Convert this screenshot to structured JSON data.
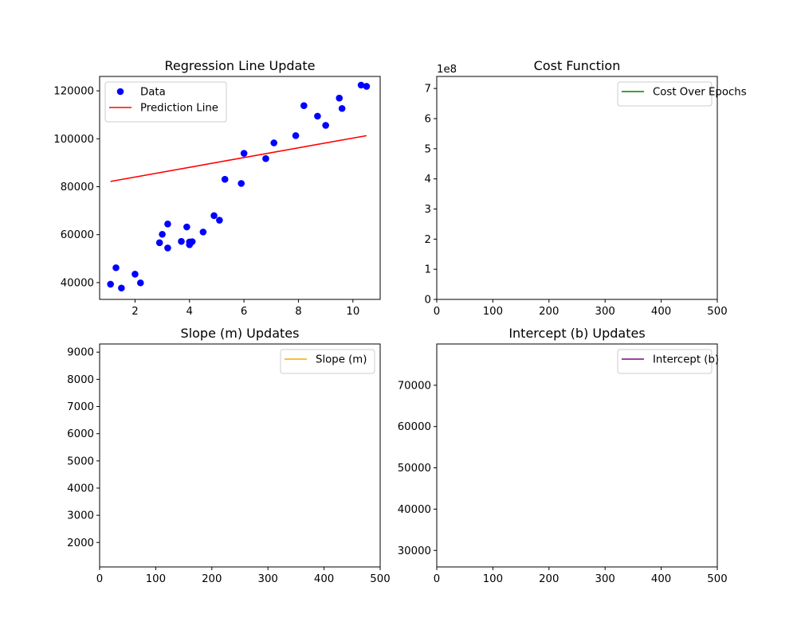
{
  "chart_data": [
    {
      "type": "scatter",
      "title": "Regression Line Update",
      "xlabel": "",
      "ylabel": "",
      "xlim": [
        0.7,
        11.0
      ],
      "ylim": [
        33000,
        126000
      ],
      "xticks": [
        2,
        4,
        6,
        8,
        10
      ],
      "yticks": [
        40000,
        60000,
        80000,
        100000,
        120000
      ],
      "legend_position": "top-left",
      "series": [
        {
          "name": "Data",
          "kind": "scatter",
          "color": "#0000ff",
          "x": [
            1.1,
            1.3,
            1.5,
            2.0,
            2.2,
            2.9,
            3.0,
            3.2,
            3.2,
            3.7,
            3.9,
            4.0,
            4.0,
            4.1,
            4.5,
            4.9,
            5.1,
            5.3,
            5.9,
            6.0,
            6.8,
            7.1,
            7.9,
            8.2,
            8.7,
            9.0,
            9.5,
            9.6,
            10.3,
            10.5
          ],
          "y": [
            39343,
            46205,
            37731,
            43525,
            39891,
            56642,
            60150,
            54445,
            64445,
            57189,
            63218,
            55794,
            56957,
            57081,
            61111,
            67938,
            66029,
            83088,
            81363,
            93940,
            91738,
            98273,
            101302,
            113812,
            109431,
            105582,
            116969,
            112635,
            122391,
            121872
          ]
        },
        {
          "name": "Prediction Line",
          "kind": "line",
          "color": "#ff0000",
          "x": [
            1.1,
            10.5
          ],
          "y": [
            82200,
            101300
          ]
        }
      ]
    },
    {
      "type": "line",
      "title": "Cost Function",
      "xlabel": "",
      "ylabel": "",
      "xlim": [
        0,
        500
      ],
      "ylim": [
        0,
        7.4
      ],
      "xticks": [
        0,
        100,
        200,
        300,
        400,
        500
      ],
      "yticks": [
        0,
        1,
        2,
        3,
        4,
        5,
        6,
        7
      ],
      "y_offset_label": "1e8",
      "legend_position": "top-right",
      "series": [
        {
          "name": "Cost Over Epochs",
          "color": "#008000",
          "x": [],
          "y": []
        }
      ]
    },
    {
      "type": "line",
      "title": "Slope (m) Updates",
      "xlabel": "",
      "ylabel": "",
      "xlim": [
        0,
        500
      ],
      "ylim": [
        1100,
        9300
      ],
      "xticks": [
        0,
        100,
        200,
        300,
        400,
        500
      ],
      "yticks": [
        2000,
        3000,
        4000,
        5000,
        6000,
        7000,
        8000,
        9000
      ],
      "legend_position": "top-right",
      "series": [
        {
          "name": "Slope (m)",
          "color": "#ffa500",
          "x": [],
          "y": []
        }
      ]
    },
    {
      "type": "line",
      "title": "Intercept (b) Updates",
      "xlabel": "",
      "ylabel": "",
      "xlim": [
        0,
        500
      ],
      "ylim": [
        26000,
        80000
      ],
      "xticks": [
        0,
        100,
        200,
        300,
        400,
        500
      ],
      "yticks": [
        30000,
        40000,
        50000,
        60000,
        70000
      ],
      "legend_position": "top-right",
      "series": [
        {
          "name": "Intercept (b)",
          "color": "#800080",
          "x": [],
          "y": []
        }
      ]
    }
  ]
}
